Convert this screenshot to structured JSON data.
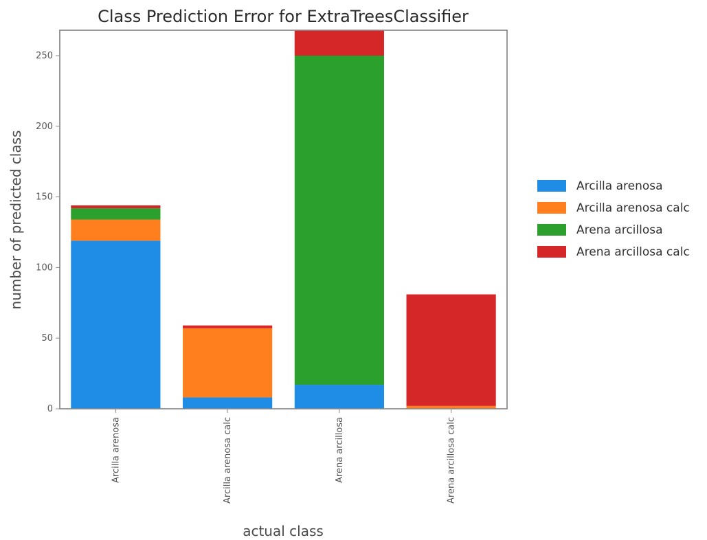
{
  "chart_data": {
    "type": "bar",
    "stacked": true,
    "title": "Class Prediction Error for ExtraTreesClassifier",
    "xlabel": "actual class",
    "ylabel": "number of predicted class",
    "categories": [
      "Arcilla arenosa",
      "Arcilla arenosa calc",
      "Arena arcillosa",
      "Arena arcillosa calc"
    ],
    "series": [
      {
        "name": "Arcilla arenosa",
        "color": "#1f8ce6",
        "values": [
          119,
          8,
          17,
          0
        ]
      },
      {
        "name": "Arcilla arenosa calc",
        "color": "#ff7f1e",
        "values": [
          15,
          49,
          0,
          2
        ]
      },
      {
        "name": "Arena arcillosa",
        "color": "#2ca02c",
        "values": [
          8,
          0,
          233,
          0
        ]
      },
      {
        "name": "Arena arcillosa calc",
        "color": "#d62728",
        "values": [
          2,
          2,
          20,
          79
        ]
      }
    ],
    "ylim": [
      0,
      268
    ],
    "yticks": [
      "0",
      "50",
      "100",
      "150",
      "200",
      "250"
    ],
    "grid": false,
    "legend_position": "right"
  }
}
